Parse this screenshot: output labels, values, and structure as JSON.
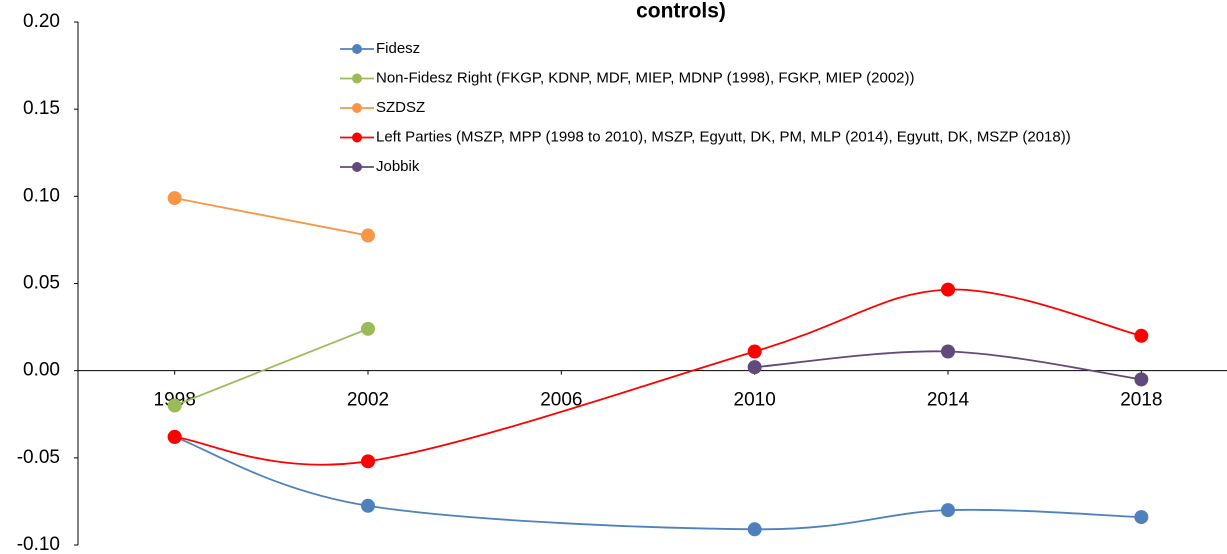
{
  "chart_data": {
    "type": "line",
    "title": "controls)",
    "smooth": true,
    "xlim": [
      1996,
      2020
    ],
    "xticks": [
      1998,
      2002,
      2006,
      2010,
      2014,
      2018
    ],
    "ylim": [
      -0.1,
      0.2
    ],
    "yticks": [
      {
        "value": 0.2,
        "label": "0.20"
      },
      {
        "value": 0.15,
        "label": "0.15"
      },
      {
        "value": 0.1,
        "label": "0.10"
      },
      {
        "value": 0.05,
        "label": "0.05"
      },
      {
        "value": 0.0,
        "label": "0.00"
      },
      {
        "value": -0.05,
        "label": "-0.05"
      },
      {
        "value": -0.1,
        "label": "-0.10"
      }
    ],
    "series": [
      {
        "name": "Fidesz",
        "color": "#4f81bd",
        "x": [
          1998,
          2002,
          2010,
          2014,
          2018
        ],
        "values": [
          -0.038,
          -0.0775,
          -0.091,
          -0.08,
          -0.084
        ]
      },
      {
        "name": "Non-Fidesz Right (FKGP, KDNP, MDF, MIEP, MDNP (1998), FGKP, MIEP (2002))",
        "color": "#9bbb59",
        "x": [
          1998,
          2002
        ],
        "values": [
          -0.02,
          0.024
        ]
      },
      {
        "name": "SZDSZ",
        "color": "#f79646",
        "x": [
          1998,
          2002
        ],
        "values": [
          0.099,
          0.0775
        ]
      },
      {
        "name": "Left Parties (MSZP, MPP (1998 to 2010), MSZP, Egyutt, DK, PM, MLP (2014), Egyutt, DK, MSZP (2018))",
        "color": "#ff0000",
        "x": [
          1998,
          2002,
          2010,
          2014,
          2018
        ],
        "values": [
          -0.038,
          -0.052,
          0.011,
          0.0465,
          0.02
        ]
      },
      {
        "name": "Jobbik",
        "color": "#604a7b",
        "x": [
          2010,
          2014,
          2018
        ],
        "values": [
          0.002,
          0.011,
          -0.005
        ]
      }
    ]
  }
}
